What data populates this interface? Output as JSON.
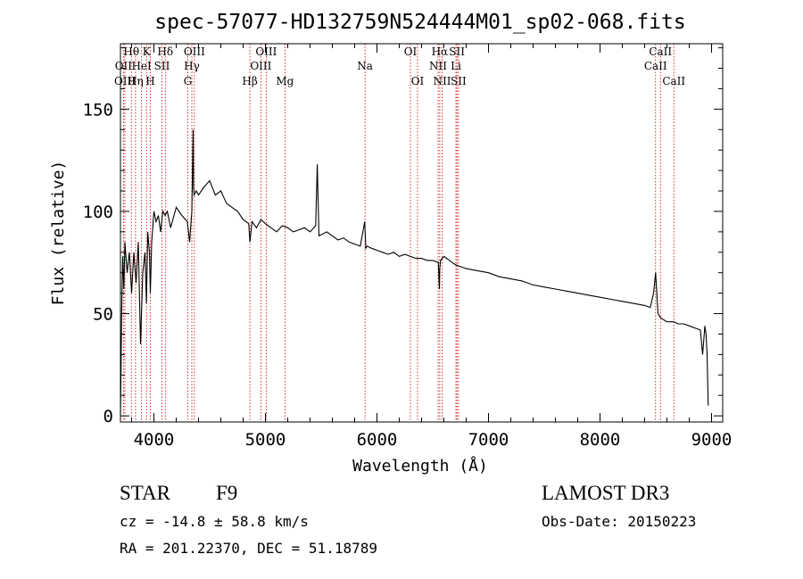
{
  "chart_data": {
    "type": "line",
    "title": "spec-57077-HD132759N524444M01_sp02-068.fits",
    "xlabel": "Wavelength (Å)",
    "ylabel": "Flux (relative)",
    "xlim": [
      3700,
      9100
    ],
    "ylim": [
      -3,
      182
    ],
    "xticks": [
      4000,
      5000,
      6000,
      7000,
      8000,
      9000
    ],
    "xtick_labels": [
      "4000",
      "5000",
      "6000",
      "7000",
      "8000",
      "9000"
    ],
    "yticks": [
      0,
      50,
      100,
      150
    ],
    "ytick_labels": [
      "0",
      "50",
      "100",
      "150"
    ],
    "series": [
      {
        "name": "spectrum",
        "x": [
          3700,
          3710,
          3720,
          3730,
          3740,
          3760,
          3780,
          3800,
          3820,
          3840,
          3860,
          3880,
          3900,
          3920,
          3933,
          3945,
          3960,
          3968,
          3980,
          4000,
          4020,
          4040,
          4060,
          4080,
          4101,
          4120,
          4150,
          4200,
          4250,
          4300,
          4320,
          4340,
          4352,
          4355,
          4360,
          4380,
          4400,
          4450,
          4500,
          4550,
          4600,
          4650,
          4700,
          4750,
          4800,
          4850,
          4861,
          4880,
          4920,
          4960,
          5000,
          5050,
          5100,
          5150,
          5200,
          5250,
          5300,
          5350,
          5400,
          5450,
          5465,
          5480,
          5550,
          5600,
          5650,
          5700,
          5750,
          5800,
          5850,
          5890,
          5900,
          5910,
          5950,
          6000,
          6050,
          6100,
          6150,
          6200,
          6250,
          6300,
          6350,
          6400,
          6450,
          6500,
          6550,
          6560,
          6563,
          6570,
          6600,
          6650,
          6700,
          6800,
          6900,
          7000,
          7100,
          7200,
          7300,
          7400,
          7500,
          7600,
          7700,
          7800,
          7900,
          8000,
          8100,
          8200,
          8300,
          8400,
          8450,
          8480,
          8498,
          8520,
          8542,
          8570,
          8600,
          8662,
          8700,
          8750,
          8800,
          8850,
          8900,
          8920,
          8940,
          8950,
          8960,
          8970
        ],
        "values": [
          0,
          48,
          78,
          62,
          85,
          70,
          80,
          60,
          80,
          65,
          85,
          35,
          70,
          80,
          55,
          90,
          80,
          60,
          85,
          100,
          95,
          98,
          90,
          100,
          98,
          100,
          92,
          102,
          98,
          95,
          85,
          100,
          140,
          112,
          108,
          110,
          108,
          112,
          115,
          108,
          110,
          104,
          102,
          100,
          96,
          94,
          85,
          95,
          92,
          96,
          94,
          92,
          90,
          93,
          92,
          90,
          91,
          92,
          90,
          93,
          123,
          88,
          90,
          88,
          86,
          87,
          85,
          84,
          83,
          95,
          82,
          83,
          82,
          81,
          80,
          79,
          80,
          78,
          79,
          78,
          77,
          77,
          76,
          76,
          75,
          62,
          72,
          76,
          78,
          76,
          74,
          72,
          71,
          70,
          68,
          67,
          66,
          64,
          63,
          62,
          61,
          60,
          59,
          58,
          57,
          56,
          55,
          54,
          53,
          60,
          70,
          50,
          48,
          47,
          46,
          46,
          45,
          45,
          44,
          43,
          42,
          30,
          44,
          40,
          30,
          5
        ]
      }
    ],
    "line_markers": [
      {
        "name": "Hθ",
        "wavelength": 3798,
        "row": 1
      },
      {
        "name": "OII",
        "wavelength": 3727,
        "row": 2
      },
      {
        "name": "OIII",
        "wavelength": 3740,
        "row": 3
      },
      {
        "name": "Hη",
        "wavelength": 3835,
        "row": 3
      },
      {
        "name": "HeI",
        "wavelength": 3889,
        "row": 2
      },
      {
        "name": "K",
        "wavelength": 3934,
        "row": 1
      },
      {
        "name": "H",
        "wavelength": 3968,
        "row": 3
      },
      {
        "name": "SII",
        "wavelength": 4072,
        "row": 2
      },
      {
        "name": "Hδ",
        "wavelength": 4102,
        "row": 1
      },
      {
        "name": "OIII",
        "wavelength": 4363,
        "row": 1
      },
      {
        "name": "Hγ",
        "wavelength": 4340,
        "row": 2
      },
      {
        "name": "G",
        "wavelength": 4304,
        "row": 3
      },
      {
        "name": "Hβ",
        "wavelength": 4861,
        "row": 3
      },
      {
        "name": "OIII",
        "wavelength": 5007,
        "row": 1
      },
      {
        "name": "OIII",
        "wavelength": 4959,
        "row": 2
      },
      {
        "name": "Mg",
        "wavelength": 5175,
        "row": 3
      },
      {
        "name": "Na",
        "wavelength": 5893,
        "row": 2
      },
      {
        "name": "OI",
        "wavelength": 6300,
        "row": 1
      },
      {
        "name": "OI",
        "wavelength": 6364,
        "row": 3
      },
      {
        "name": "Hα",
        "wavelength": 6563,
        "row": 1
      },
      {
        "name": "NII",
        "wavelength": 6548,
        "row": 2
      },
      {
        "name": "NII",
        "wavelength": 6584,
        "row": 3
      },
      {
        "name": "SII",
        "wavelength": 6717,
        "row": 1
      },
      {
        "name": "Li",
        "wavelength": 6708,
        "row": 2
      },
      {
        "name": "SII",
        "wavelength": 6731,
        "row": 3
      },
      {
        "name": "CaII",
        "wavelength": 8542,
        "row": 1
      },
      {
        "name": "CaII",
        "wavelength": 8498,
        "row": 2
      },
      {
        "name": "CaII",
        "wavelength": 8662,
        "row": 3
      }
    ],
    "marker_color": "#cc0000",
    "line_color": "#000000"
  },
  "info": {
    "object_class": "STAR",
    "subclass": "F9",
    "survey": "LAMOST DR3",
    "redshift": "cz = -14.8 ± 58.8 km/s",
    "obs_date": "Obs-Date: 20150223",
    "coords": "RA = 201.22370, DEC =  51.18789"
  }
}
